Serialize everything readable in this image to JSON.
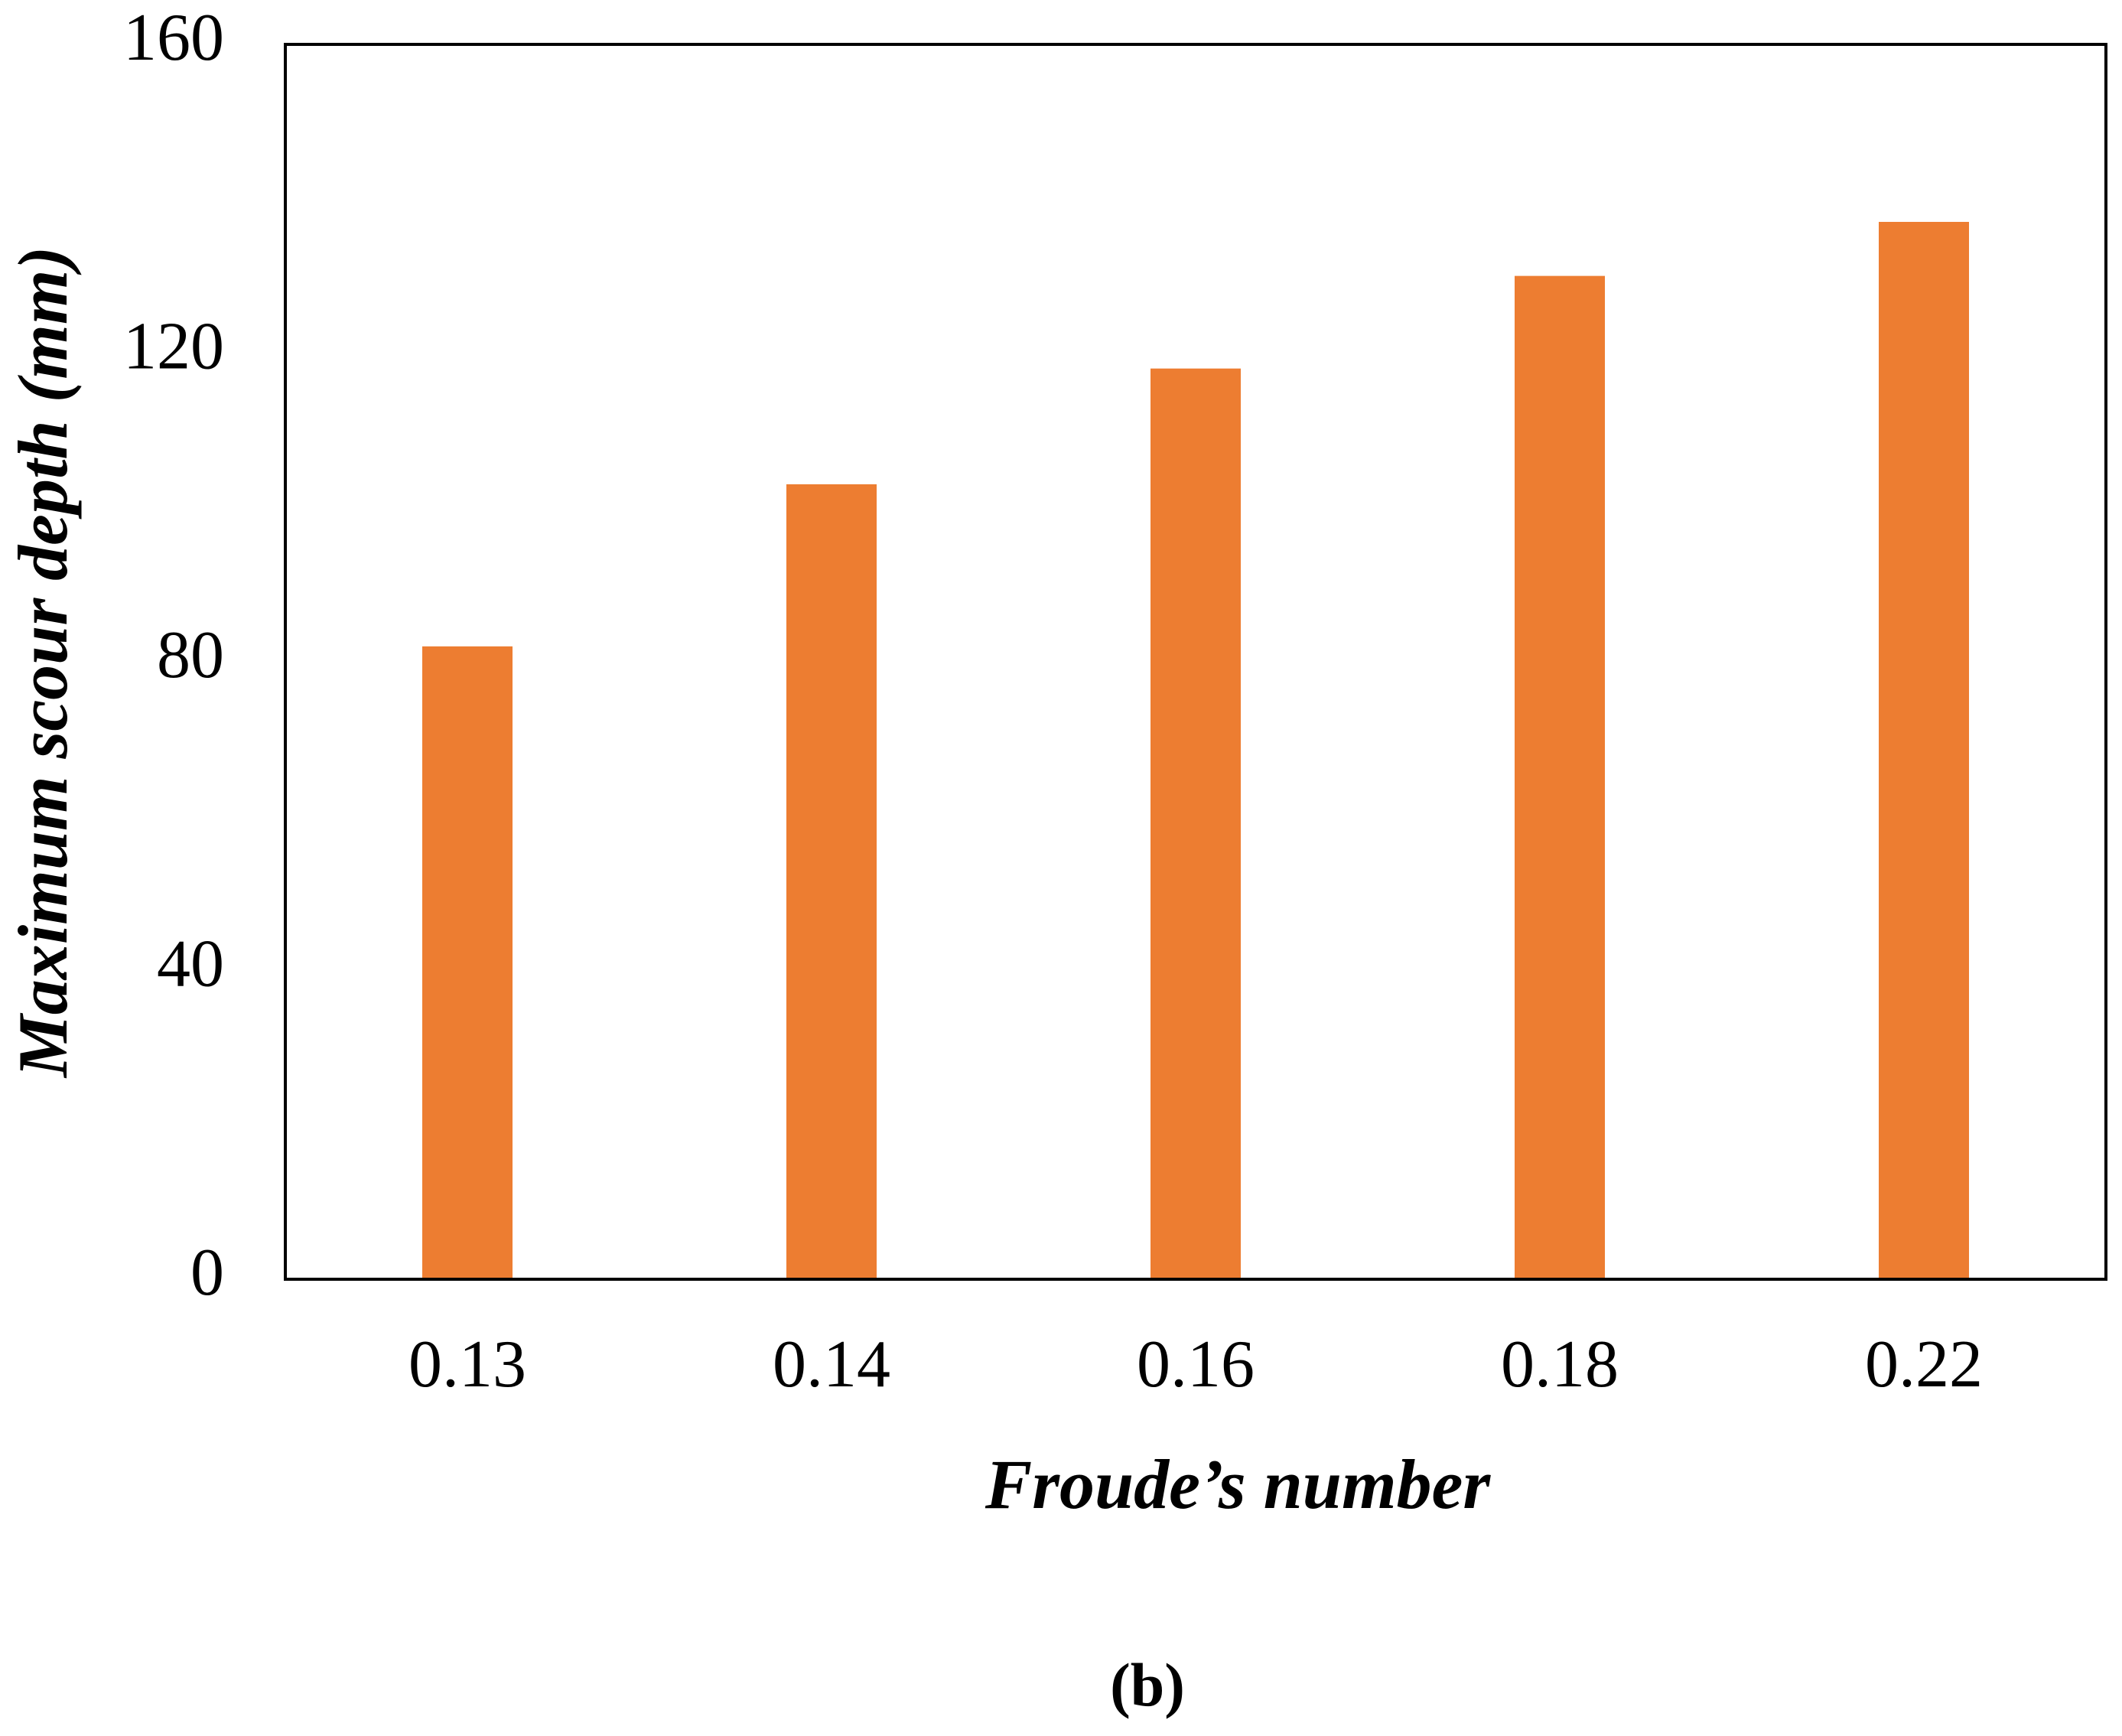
{
  "chart_data": {
    "type": "bar",
    "x_label": "Froude’s number",
    "y_label": "Maximum scour depth (mm)",
    "caption": "(b)",
    "categories": [
      "0.13",
      "0.14",
      "0.16",
      "0.18",
      "0.22"
    ],
    "values": [
      82,
      103,
      118,
      130,
      137
    ],
    "color": "#ed7d31",
    "ylim": [
      0,
      160
    ],
    "yticks": [
      0,
      40,
      80,
      120,
      160
    ],
    "grid": false
  }
}
